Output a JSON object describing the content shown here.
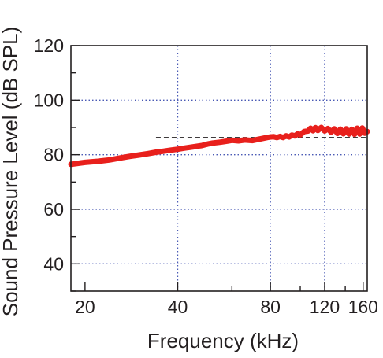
{
  "chart_data": {
    "type": "line",
    "title": "",
    "xlabel": "Frequency (kHz)",
    "ylabel": "Sound Pressure Level (dB SPL)",
    "x_scale": "log",
    "xlim": [
      18,
      165
    ],
    "ylim": [
      30,
      120
    ],
    "x_ticks": [
      20,
      40,
      80,
      120,
      160
    ],
    "x_tick_labels": [
      "20",
      "40",
      "80",
      "120",
      "160"
    ],
    "x_minor_ticks": [
      60,
      100,
      140
    ],
    "y_ticks": [
      40,
      60,
      80,
      100,
      120
    ],
    "y_tick_labels": [
      "40",
      "60",
      "80",
      "100",
      "120"
    ],
    "y_minor_ticks": [
      30,
      50,
      70,
      90,
      110
    ],
    "grid": true,
    "grid_x": [
      40,
      80,
      120
    ],
    "grid_y": [
      40,
      60,
      80,
      100
    ],
    "reference_line": {
      "y": 86.3,
      "x_start": 34,
      "x_end": 165,
      "style": "dashed",
      "color": "#231f20"
    },
    "colors": {
      "series": "#e8201c",
      "grid": "#4a5ab5",
      "axis": "#231f20"
    },
    "series": [
      {
        "color": "#e8201c",
        "x": [
          18,
          20,
          22,
          24,
          26,
          28,
          30,
          32,
          34,
          36,
          38,
          40,
          42,
          45,
          48,
          50,
          52,
          55,
          58,
          60,
          63,
          66,
          70,
          72,
          75,
          78,
          80,
          82,
          84,
          86,
          88,
          90,
          92,
          94,
          96,
          98,
          100,
          103,
          106,
          108,
          110,
          112,
          114,
          117,
          120,
          123,
          126,
          129,
          132,
          135,
          138,
          141,
          144,
          147,
          150,
          153,
          156,
          159,
          162,
          165
        ],
        "y": [
          76.5,
          77.2,
          77.6,
          78.1,
          78.8,
          79.4,
          79.9,
          80.4,
          80.9,
          81.3,
          81.7,
          82.0,
          82.4,
          82.9,
          83.4,
          83.9,
          84.3,
          84.6,
          85.0,
          85.3,
          85.1,
          85.4,
          85.2,
          85.5,
          85.9,
          86.3,
          86.5,
          86.6,
          86.3,
          86.7,
          86.3,
          86.9,
          86.5,
          87.2,
          86.9,
          87.6,
          87.3,
          88.5,
          88.7,
          89.7,
          88.8,
          89.9,
          88.9,
          90.0,
          88.7,
          89.6,
          88.2,
          89.5,
          87.8,
          89.4,
          87.7,
          89.5,
          87.6,
          89.3,
          87.5,
          89.7,
          87.6,
          89.8,
          87.9,
          88.5
        ]
      }
    ]
  }
}
